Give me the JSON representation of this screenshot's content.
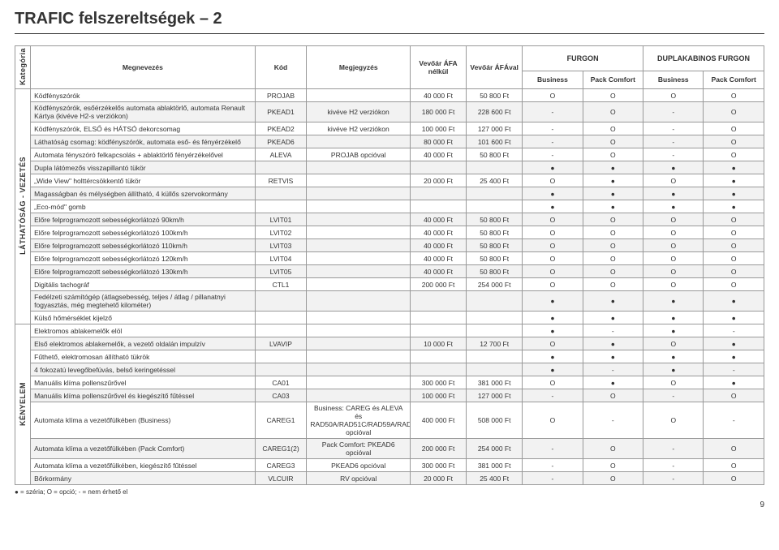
{
  "title": "TRAFIC felszereltségek – 2",
  "header": {
    "group1": "FURGON",
    "group2": "DUPLAKABINOS FURGON",
    "kategoria": "Kategória",
    "megnevezes": "Megnevezés",
    "kod": "Kód",
    "megjegyzes": "Megjegyzés",
    "ar1": "Vevőár ÁFA nélkül",
    "ar2": "Vevőár ÁFÁval",
    "cols": [
      "Business",
      "Pack Comfort",
      "Business",
      "Pack Comfort"
    ]
  },
  "cat1": "LÁTHATÓSÁG - VEZETÉS",
  "cat2": "KÉNYELEM",
  "rows1": [
    {
      "n": "Ködfényszórók",
      "k": "PROJAB",
      "m": "",
      "p1": "40 000 Ft",
      "p2": "50 800 Ft",
      "c": [
        "O",
        "O",
        "O",
        "O"
      ]
    },
    {
      "n": "Ködfényszórók, esőérzékelős automata ablaktörlő, automata Renault Kártya (kivéve H2-s verziókon)",
      "k": "PKEAD1",
      "m": "kivéve H2 verziókon",
      "p1": "180 000 Ft",
      "p2": "228 600 Ft",
      "c": [
        "-",
        "O",
        "-",
        "O"
      ]
    },
    {
      "n": "Ködfényszórók, ELSŐ és HÁTSÓ dekorcsomag",
      "k": "PKEAD2",
      "m": "kivéve H2 verziókon",
      "p1": "100 000 Ft",
      "p2": "127 000 Ft",
      "c": [
        "-",
        "O",
        "-",
        "O"
      ]
    },
    {
      "n": "Láthatóság csomag: ködfényszórók, automata eső- és fényérzékelő",
      "k": "PKEAD6",
      "m": "",
      "p1": "80 000 Ft",
      "p2": "101 600 Ft",
      "c": [
        "-",
        "O",
        "-",
        "O"
      ]
    },
    {
      "n": "Automata fényszóró felkapcsolás + ablaktörlő fényérzékelővel",
      "k": "ALEVA",
      "m": "PROJAB opcióval",
      "p1": "40 000 Ft",
      "p2": "50 800 Ft",
      "c": [
        "-",
        "O",
        "-",
        "O"
      ]
    },
    {
      "n": "Dupla látómezős visszapillantó tükör",
      "k": "",
      "m": "",
      "p1": "",
      "p2": "",
      "c": [
        "●",
        "●",
        "●",
        "●"
      ]
    },
    {
      "n": "„Wide View\" holttércsökkentő tükör",
      "k": "RETVIS",
      "m": "",
      "p1": "20 000 Ft",
      "p2": "25 400 Ft",
      "c": [
        "O",
        "●",
        "O",
        "●"
      ]
    },
    {
      "n": "Magasságban és mélységben állítható, 4 küllős szervokormány",
      "k": "",
      "m": "",
      "p1": "",
      "p2": "",
      "c": [
        "●",
        "●",
        "●",
        "●"
      ]
    },
    {
      "n": "„Eco-mód\" gomb",
      "k": "",
      "m": "",
      "p1": "",
      "p2": "",
      "c": [
        "●",
        "●",
        "●",
        "●"
      ]
    },
    {
      "n": "Előre felprogramozott sebességkorlátozó 90km/h",
      "k": "LVIT01",
      "m": "",
      "p1": "40 000 Ft",
      "p2": "50 800 Ft",
      "c": [
        "O",
        "O",
        "O",
        "O"
      ]
    },
    {
      "n": "Előre felprogramozott sebességkorlátozó 100km/h",
      "k": "LVIT02",
      "m": "",
      "p1": "40 000 Ft",
      "p2": "50 800 Ft",
      "c": [
        "O",
        "O",
        "O",
        "O"
      ]
    },
    {
      "n": "Előre felprogramozott sebességkorlátozó 110km/h",
      "k": "LVIT03",
      "m": "",
      "p1": "40 000 Ft",
      "p2": "50 800 Ft",
      "c": [
        "O",
        "O",
        "O",
        "O"
      ]
    },
    {
      "n": "Előre felprogramozott sebességkorlátozó 120km/h",
      "k": "LVIT04",
      "m": "",
      "p1": "40 000 Ft",
      "p2": "50 800 Ft",
      "c": [
        "O",
        "O",
        "O",
        "O"
      ]
    },
    {
      "n": "Előre felprogramozott sebességkorlátozó 130km/h",
      "k": "LVIT05",
      "m": "",
      "p1": "40 000 Ft",
      "p2": "50 800 Ft",
      "c": [
        "O",
        "O",
        "O",
        "O"
      ]
    },
    {
      "n": "Digitális tachográf",
      "k": "CTL1",
      "m": "",
      "p1": "200 000 Ft",
      "p2": "254 000 Ft",
      "c": [
        "O",
        "O",
        "O",
        "O"
      ]
    },
    {
      "n": "Fedélzeti számítógép (átlagsebesség, teljes / átlag / pillanatnyi fogyasztás, még megtehető kilométer)",
      "k": "",
      "m": "",
      "p1": "",
      "p2": "",
      "c": [
        "●",
        "●",
        "●",
        "●"
      ]
    },
    {
      "n": "Külső hőmérséklet kijelző",
      "k": "",
      "m": "",
      "p1": "",
      "p2": "",
      "c": [
        "●",
        "●",
        "●",
        "●"
      ]
    }
  ],
  "rows2": [
    {
      "n": "Elektromos ablakemelők elöl",
      "k": "",
      "m": "",
      "p1": "",
      "p2": "",
      "c": [
        "●",
        "-",
        "●",
        "-"
      ]
    },
    {
      "n": "Első elektromos ablakemelők, a vezető oldalán impulzív",
      "k": "LVAVIP",
      "m": "",
      "p1": "10 000 Ft",
      "p2": "12 700 Ft",
      "c": [
        "O",
        "●",
        "O",
        "●"
      ]
    },
    {
      "n": "Fűthető, elektromosan állítható tükrök",
      "k": "",
      "m": "",
      "p1": "",
      "p2": "",
      "c": [
        "●",
        "●",
        "●",
        "●"
      ]
    },
    {
      "n": "4 fokozatú levegőbefúvás, belső keringetéssel",
      "k": "",
      "m": "",
      "p1": "",
      "p2": "",
      "c": [
        "●",
        "-",
        "●",
        "-"
      ]
    },
    {
      "n": "Manuális klíma pollenszűrővel",
      "k": "CA01",
      "m": "",
      "p1": "300 000 Ft",
      "p2": "381 000 Ft",
      "c": [
        "O",
        "●",
        "O",
        "●"
      ]
    },
    {
      "n": "Manuális klíma pollenszűrővel és kiegészítő fűtéssel",
      "k": "CA03",
      "m": "",
      "p1": "100 000 Ft",
      "p2": "127 000 Ft",
      "c": [
        "-",
        "O",
        "-",
        "O"
      ]
    },
    {
      "n": "Automata klíma a vezetőfülkében (Business)",
      "k": "CAREG1",
      "m": "Business: CAREG és ALEVA és RAD50A/RAD51C/RAD59A/RAD60C opcióval",
      "p1": "400 000 Ft",
      "p2": "508 000 Ft",
      "c": [
        "O",
        "-",
        "O",
        "-"
      ]
    },
    {
      "n": "Automata klíma a vezetőfülkében (Pack Comfort)",
      "k": "CAREG1(2)",
      "m": "Pack Comfort: PKEAD6 opcióval",
      "p1": "200 000 Ft",
      "p2": "254 000 Ft",
      "c": [
        "-",
        "O",
        "-",
        "O"
      ]
    },
    {
      "n": "Automata klíma a vezetőfülkében, kiegészítő fűtéssel",
      "k": "CAREG3",
      "m": "PKEAD6 opcióval",
      "p1": "300 000 Ft",
      "p2": "381 000 Ft",
      "c": [
        "-",
        "O",
        "-",
        "O"
      ]
    },
    {
      "n": "Bőrkormány",
      "k": "VLCUIR",
      "m": "RV opcióval",
      "p1": "20 000 Ft",
      "p2": "25 400 Ft",
      "c": [
        "-",
        "O",
        "-",
        "O"
      ]
    }
  ],
  "legend": "● = széria; O = opció; - = nem érhető el",
  "page": "9"
}
